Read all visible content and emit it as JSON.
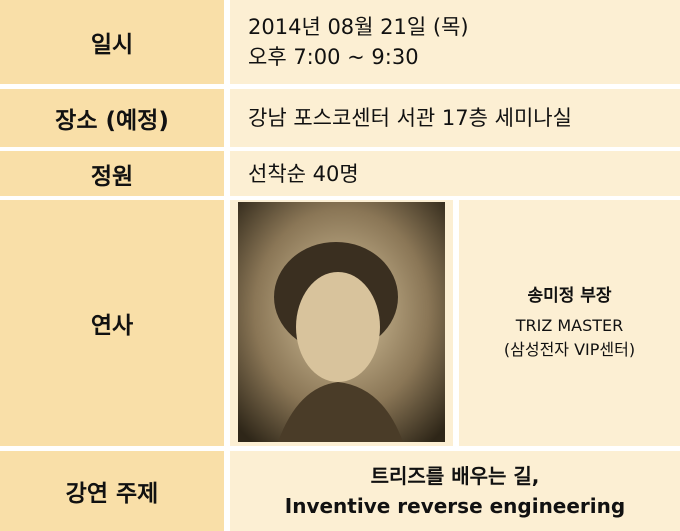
{
  "table": {
    "rows": [
      {
        "label": "일시",
        "value": [
          "2014년 08월 21일 (목)",
          "오후 7:00 ~ 9:30"
        ]
      },
      {
        "label": "장소 (예정)",
        "value": [
          "강남 포스코센터 서관 17층 세미나실"
        ]
      },
      {
        "label": "정원",
        "value": [
          "선착순 40명"
        ]
      },
      {
        "label": "연사",
        "speaker": {
          "name": "송미정 부장",
          "title": "TRIZ MASTER",
          "org": "(삼성전자 VIP센터)"
        }
      },
      {
        "label": "강연 주제",
        "value": [
          "트리즈를 배우는 길,",
          "Inventive reverse engineering"
        ]
      }
    ]
  }
}
